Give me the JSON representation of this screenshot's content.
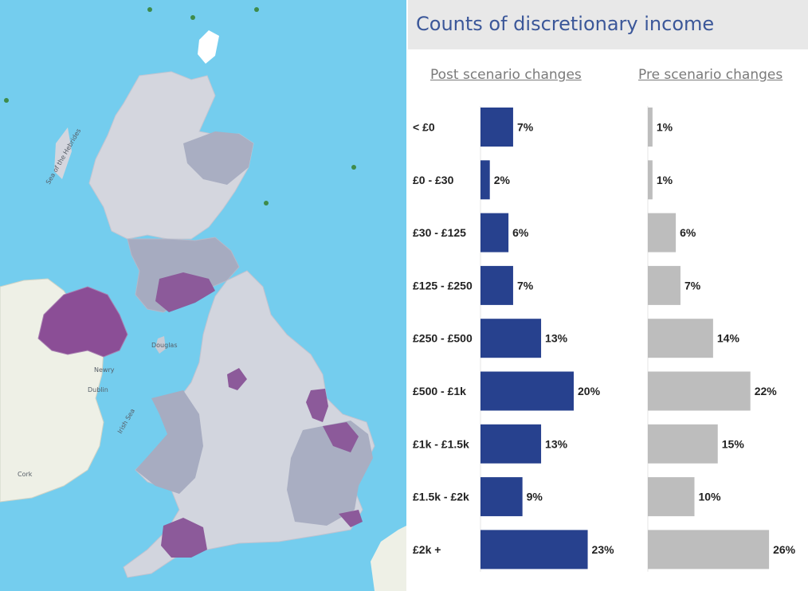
{
  "map": {
    "labels": {
      "dublin": "Dublin",
      "cork": "Cork",
      "newry": "Newry",
      "douglas": "Douglas",
      "sea_hebrides": "Sea of the Hebrides",
      "irish_sea": "Irish Sea"
    }
  },
  "chart_data": {
    "type": "bar",
    "orientation": "horizontal",
    "title": "Counts of discretionary income",
    "categories": [
      "< £0",
      "£0 - £30",
      "£30 - £125",
      "£125 - £250",
      "£250 - £500",
      "£500 - £1k",
      "£1k - £1.5k",
      "£1.5k - £2k",
      "£2k +"
    ],
    "series": [
      {
        "name": "Post scenario changes",
        "color": "#27418e",
        "values": [
          7,
          2,
          6,
          7,
          13,
          20,
          13,
          9,
          23
        ],
        "labels": [
          "7%",
          "2%",
          "6%",
          "7%",
          "13%",
          "20%",
          "13%",
          "9%",
          "23%"
        ]
      },
      {
        "name": "Pre scenario changes",
        "color": "#bdbdbd",
        "values": [
          1,
          1,
          6,
          7,
          14,
          22,
          15,
          10,
          26
        ],
        "labels": [
          "1%",
          "1%",
          "6%",
          "7%",
          "14%",
          "22%",
          "15%",
          "10%",
          "26%"
        ]
      }
    ],
    "xlim": [
      0,
      30
    ],
    "grid": false
  }
}
